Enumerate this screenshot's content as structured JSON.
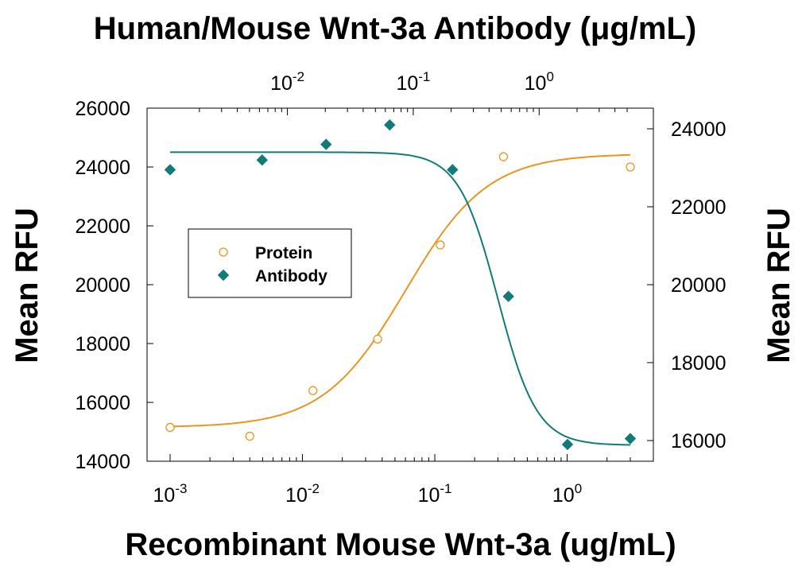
{
  "chart_data": {
    "type": "scatter",
    "title": "Human/Mouse Wnt-3a Antibody (μg/mL)",
    "xlabel": "Recombinant Mouse Wnt-3a (ug/mL)",
    "ylabel": "Mean RFU",
    "y2label": "Mean RFU",
    "x_scale": "log",
    "x_range": [
      0.001,
      3
    ],
    "x_ticks": [
      {
        "value": 0.001,
        "base": "10",
        "exp": "-3"
      },
      {
        "value": 0.01,
        "base": "10",
        "exp": "-2"
      },
      {
        "value": 0.1,
        "base": "10",
        "exp": "-1"
      },
      {
        "value": 1,
        "base": "10",
        "exp": "0"
      }
    ],
    "x2_scale": "log",
    "x2_range": [
      0.00117,
      5.3
    ],
    "x2_ticks": [
      {
        "value": 0.01,
        "base": "10",
        "exp": "-2"
      },
      {
        "value": 0.1,
        "base": "10",
        "exp": "-1"
      },
      {
        "value": 1,
        "base": "10",
        "exp": "0"
      }
    ],
    "ylim": [
      14000,
      26000
    ],
    "y_ticks": [
      14000,
      16000,
      18000,
      20000,
      22000,
      24000,
      26000
    ],
    "y2lim": [
      15400,
      24500
    ],
    "y2_ticks": [
      16000,
      18000,
      20000,
      22000,
      24000
    ],
    "grid": false,
    "legend_position": "center-left",
    "series": [
      {
        "name": "Protein",
        "axis": "bottom-left",
        "marker": "circle-open",
        "color": "#e8961e",
        "x": [
          0.001,
          0.004,
          0.012,
          0.037,
          0.11,
          0.33,
          3
        ],
        "y": [
          15150,
          14850,
          16400,
          18150,
          21350,
          24350,
          24000
        ],
        "fit": {
          "type": "4PL",
          "bottom": 15150,
          "top": 24450,
          "ec50": 0.06,
          "hill": 1.4
        }
      },
      {
        "name": "Antibody",
        "axis": "top-right",
        "marker": "diamond-filled",
        "color": "#137a7a",
        "x": [
          0.00117,
          0.0063,
          0.0203,
          0.065,
          0.205,
          0.57,
          1.68,
          5.3
        ],
        "y": [
          22950,
          23200,
          23600,
          24100,
          22950,
          19700,
          15900,
          16050
        ],
        "fit": {
          "type": "4PL",
          "top": 23400,
          "bottom": 15880,
          "ec50": 0.47,
          "hill": 2.8
        }
      }
    ]
  }
}
